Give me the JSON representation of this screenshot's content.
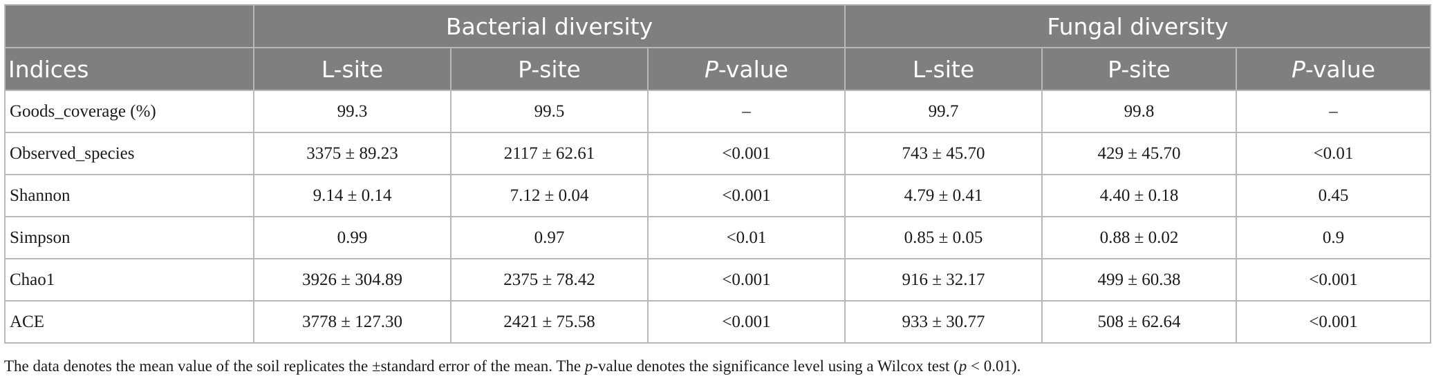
{
  "table": {
    "group_headers": [
      "",
      "Bacterial diversity",
      "Fungal diversity"
    ],
    "col_headers": {
      "indices": "Indices",
      "l_site": "L-site",
      "p_site": "P-site",
      "p_value_p": "P",
      "p_value_rest": "-value"
    },
    "rows": [
      {
        "label": "Goods_coverage (%)",
        "cells": [
          "99.3",
          "99.5",
          "–",
          "99.7",
          "99.8",
          "–"
        ]
      },
      {
        "label": "Observed_species",
        "cells": [
          "3375 ± 89.23",
          "2117 ± 62.61",
          "<0.001",
          "743 ± 45.70",
          "429 ± 45.70",
          "<0.01"
        ]
      },
      {
        "label": "Shannon",
        "cells": [
          "9.14 ± 0.14",
          "7.12 ± 0.04",
          "<0.001",
          "4.79 ± 0.41",
          "4.40 ± 0.18",
          "0.45"
        ]
      },
      {
        "label": "Simpson",
        "cells": [
          "0.99",
          "0.97",
          "<0.01",
          "0.85 ± 0.05",
          "0.88 ± 0.02",
          "0.9"
        ]
      },
      {
        "label": "Chao1",
        "cells": [
          "3926 ± 304.89",
          "2375 ± 78.42",
          "<0.001",
          "916 ± 32.17",
          "499 ± 60.38",
          "<0.001"
        ]
      },
      {
        "label": "ACE",
        "cells": [
          "3778 ± 127.30",
          "2421 ± 75.58",
          "<0.001",
          "933 ± 30.77",
          "508 ± 62.64",
          "<0.001"
        ]
      }
    ]
  },
  "footnote": {
    "part1": "The data denotes the mean value of the soil replicates the ±standard error of the mean. The ",
    "p_italic": "p",
    "part2": "-value denotes the significance level using a Wilcox test (",
    "p_italic2": "p",
    "part3": " < 0.01)."
  },
  "colors": {
    "header_bg": "#7f7f7f",
    "header_text": "#ffffff",
    "border": "#b8b8b8"
  }
}
